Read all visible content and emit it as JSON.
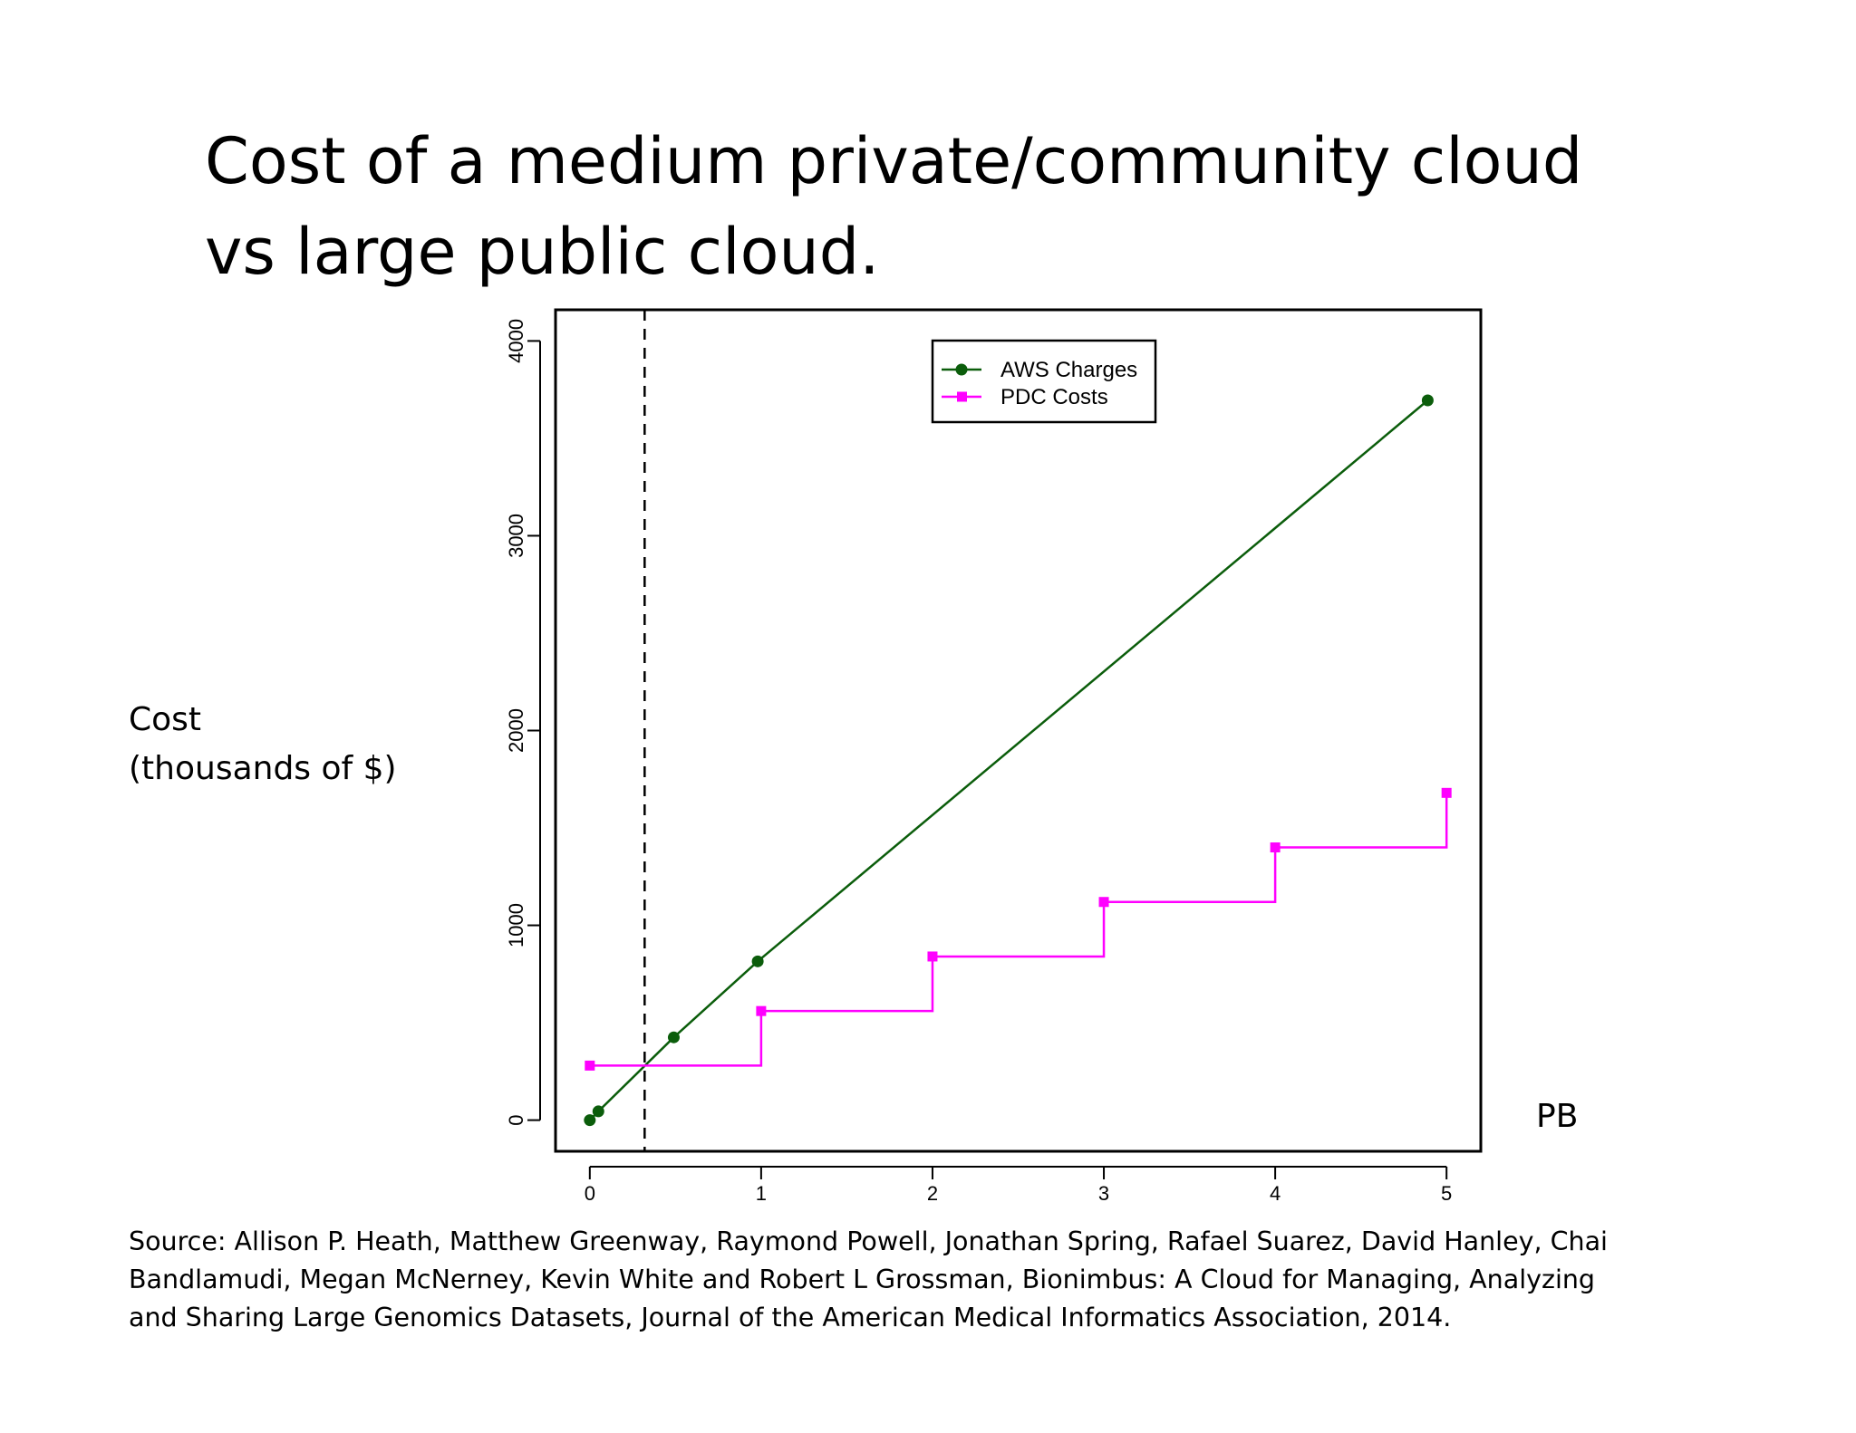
{
  "slide": {
    "title_lines": [
      "Cost of a medium private/community cloud",
      "vs large public cloud."
    ],
    "ylabel_lines": [
      "Cost",
      "(thousands of $)"
    ],
    "xlabel": "PB",
    "source_lines": [
      "Source: Allison P. Heath, Matthew Greenway, Raymond Powell, Jonathan Spring, Rafael Suarez, David Hanley, Chai",
      "Bandlamudi, Megan McNerney, Kevin White and Robert L Grossman, Bionimbus: A Cloud for Managing, Analyzing",
      "and Sharing Large Genomics Datasets, Journal of the American Medical Informatics Association, 2014."
    ]
  },
  "chart_data": {
    "type": "line",
    "title": "Cost of a medium private/community cloud vs large public cloud.",
    "xlabel": "PB",
    "ylabel": "Cost (thousands of $)",
    "xlim": [
      -0.2,
      5.2
    ],
    "ylim": [
      -160,
      4160
    ],
    "x_ticks": [
      0,
      1,
      2,
      3,
      4,
      5
    ],
    "y_ticks": [
      0,
      1000,
      2000,
      3000,
      4000
    ],
    "grid": false,
    "legend_position": "top-center",
    "reference_line": {
      "x": 0.32,
      "style": "dashed",
      "color": "#000000"
    },
    "series": [
      {
        "name": "AWS Charges",
        "color": "#0b5d0b",
        "marker": "circle",
        "step": false,
        "points": [
          [
            0,
            0
          ],
          [
            0.05,
            45
          ],
          [
            0.49,
            425
          ],
          [
            0.98,
            815
          ],
          [
            4.89,
            3695
          ]
        ]
      },
      {
        "name": "PDC Costs",
        "color": "#ff00ff",
        "marker": "square",
        "step": true,
        "points": [
          [
            0,
            280
          ],
          [
            1,
            560
          ],
          [
            2,
            840
          ],
          [
            3,
            1120
          ],
          [
            4,
            1400
          ],
          [
            5,
            1680
          ]
        ]
      }
    ]
  }
}
